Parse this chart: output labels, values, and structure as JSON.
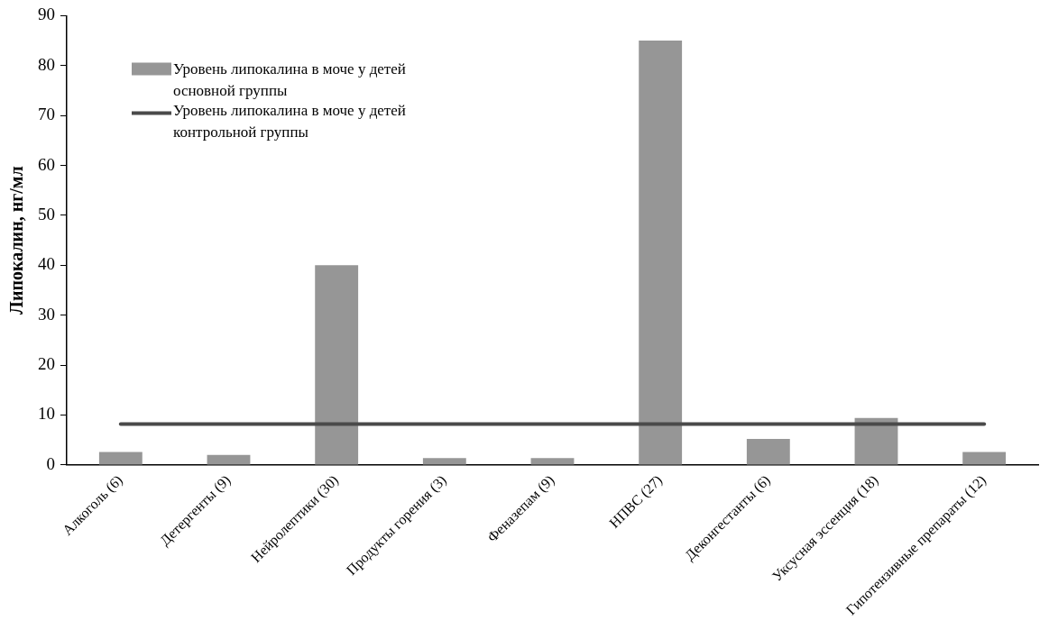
{
  "chart_data": {
    "type": "bar",
    "ylabel": "Липокалин, нг/мл",
    "categories": [
      "Алкоголь (6)",
      "Детергенты (9)",
      "Нейролептики (30)",
      "Продукты горения (3)",
      "Феназепам (9)",
      "НПВС (27)",
      "Деконгестанты (6)",
      "Уксусная эссенция (18)",
      "Гипотензивные препараты (12)"
    ],
    "series": [
      {
        "name": "Уровень липокалина в моче у детей основной группы",
        "color": "#969696",
        "values": [
          2.6,
          2,
          40,
          1.4,
          1.4,
          85,
          5.2,
          9.4,
          2.6
        ]
      },
      {
        "name": "Уровень липокалина в моче у детей контрольной группы",
        "type": "line",
        "color": "#4a4a4a",
        "values": [
          8.2,
          8.2,
          8.2,
          8.2,
          8.2,
          8.2,
          8.2,
          8.2,
          8.2
        ]
      }
    ],
    "ylim": [
      0,
      90
    ],
    "yticks": [
      0,
      10,
      20,
      30,
      40,
      50,
      60,
      70,
      80,
      90
    ],
    "grid": false,
    "legend": "top left",
    "marker": "none"
  }
}
